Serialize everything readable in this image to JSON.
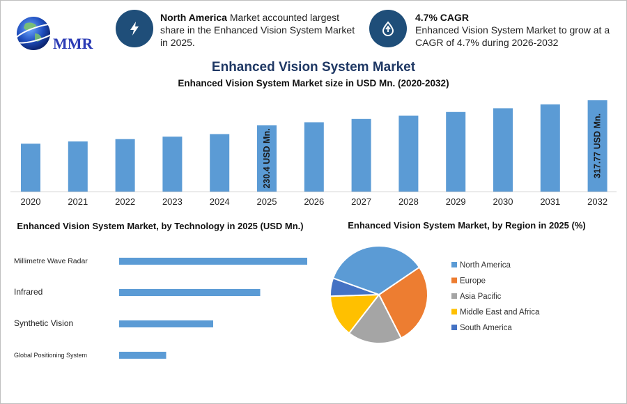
{
  "logo": {
    "text": "MMR"
  },
  "info_cards": [
    {
      "icon": "lightning-bolt-icon",
      "bold": "North America",
      "text": " Market accounted largest share in the Enhanced Vision System Market in 2025."
    },
    {
      "icon": "growth-drop-icon",
      "bold": "4.7% CAGR",
      "text": "Enhanced Vision System Market to grow at a CAGR of 4.7% during 2026-2032"
    }
  ],
  "main_title": "Enhanced Vision System Market",
  "colors": {
    "bar": "#5b9bd5",
    "title": "#1f3864",
    "icon_bg": "#1f4e79"
  },
  "chart_data": [
    {
      "type": "bar",
      "title": "Enhanced Vision System Market size in USD Mn. (2020-2032)",
      "categories": [
        "2020",
        "2021",
        "2022",
        "2023",
        "2024",
        "2025",
        "2026",
        "2027",
        "2028",
        "2029",
        "2030",
        "2031",
        "2032"
      ],
      "values": [
        166.5,
        174.3,
        182.5,
        191.1,
        200.0,
        230.4,
        241.2,
        252.6,
        264.4,
        276.9,
        289.9,
        303.5,
        317.77
      ],
      "ylim": [
        0,
        320
      ],
      "annotations": [
        {
          "category": "2025",
          "text": "230.4 USD Mn."
        },
        {
          "category": "2032",
          "text": "317.77 USD Mn."
        }
      ],
      "grid": false
    },
    {
      "type": "bar",
      "orientation": "horizontal",
      "title": "Enhanced Vision System Market, by Technology in 2025 (USD Mn.)",
      "categories": [
        "Millimetre Wave Radar",
        "Infrared",
        "Synthetic Vision",
        "Global Positioning System"
      ],
      "values": [
        80,
        60,
        40,
        20
      ],
      "xlim": [
        0,
        80
      ]
    },
    {
      "type": "pie",
      "title": "Enhanced Vision System Market, by Region in 2025 (%)",
      "categories": [
        "North America",
        "Europe",
        "Asia Pacific",
        "Middle East and Africa",
        "South America"
      ],
      "values": [
        35,
        27,
        18,
        14,
        6
      ],
      "colors": [
        "#5b9bd5",
        "#ed7d31",
        "#a5a5a5",
        "#ffc000",
        "#4472c4"
      ],
      "legend": "right"
    }
  ]
}
